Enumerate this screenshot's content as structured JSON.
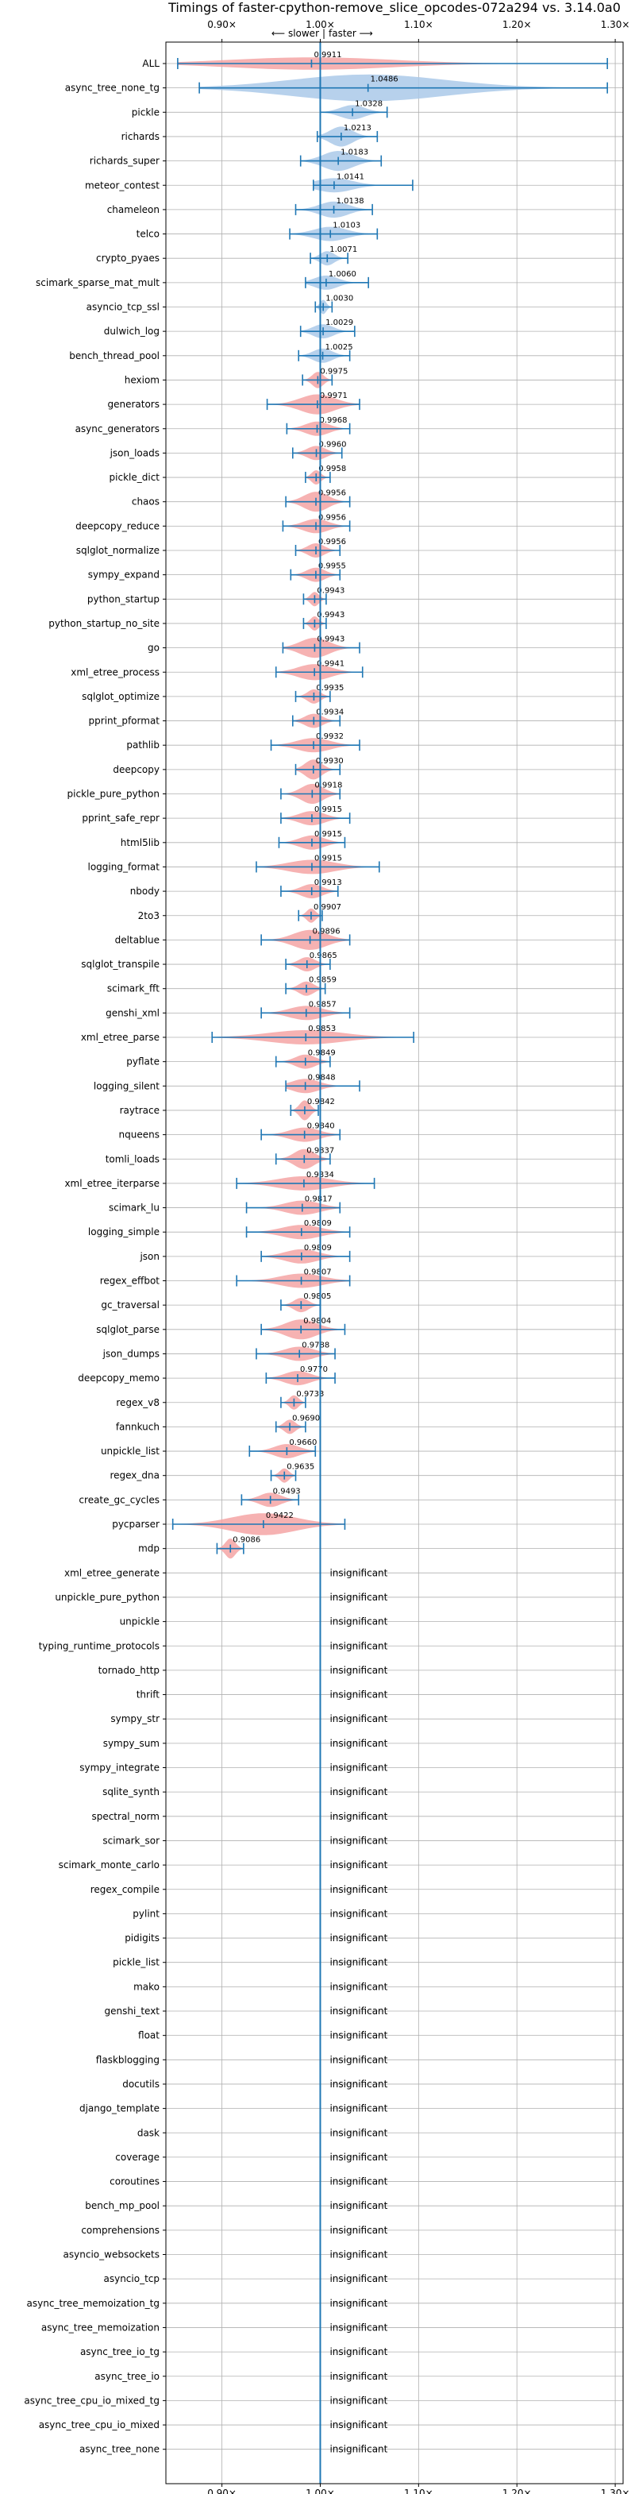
{
  "chart_data": {
    "type": "violin",
    "title": "Timings of faster-cpython-remove_slice_opcodes-072a294 vs. 3.14.0a0",
    "xlabel": "",
    "ylabel": "",
    "direction_hint": {
      "slower": "⟵ slower",
      "separator": "|",
      "faster": "faster ⟶"
    },
    "xlim": [
      0.843,
      1.308
    ],
    "xticks": [
      0.9,
      1.0,
      1.1,
      1.2,
      1.3
    ],
    "xtick_labels": [
      "0.90×",
      "1.00×",
      "1.10×",
      "1.20×",
      "1.30×"
    ],
    "grid": true,
    "reference_line": 1.0,
    "colors": {
      "faster": "#aac9e9",
      "slower": "#f4a4a4",
      "line": "#1f77b4",
      "grid": "#b0b0b0"
    },
    "insignificant_label": "insignificant",
    "benchmarks": [
      {
        "name": "ALL",
        "value": 0.9911,
        "label": "0.9911",
        "lo": 0.855,
        "hi": 1.292,
        "width": 0.4,
        "significant": true
      },
      {
        "name": "async_tree_none_tg",
        "value": 1.0486,
        "label": "1.0486",
        "lo": 0.877,
        "hi": 1.292,
        "width": 1.2,
        "significant": true
      },
      {
        "name": "pickle",
        "value": 1.0328,
        "label": "1.0328",
        "lo": 1.0,
        "hi": 1.068,
        "width": 0.5,
        "significant": true
      },
      {
        "name": "richards",
        "value": 1.0213,
        "label": "1.0213",
        "lo": 0.997,
        "hi": 1.058,
        "width": 0.8,
        "significant": true
      },
      {
        "name": "richards_super",
        "value": 1.0183,
        "label": "1.0183",
        "lo": 0.98,
        "hi": 1.062,
        "width": 0.8,
        "significant": true
      },
      {
        "name": "meteor_contest",
        "value": 1.0141,
        "label": "1.0141",
        "lo": 0.993,
        "hi": 1.094,
        "width": 0.5,
        "significant": true
      },
      {
        "name": "chameleon",
        "value": 1.0138,
        "label": "1.0138",
        "lo": 0.975,
        "hi": 1.053,
        "width": 0.6,
        "significant": true
      },
      {
        "name": "telco",
        "value": 1.0103,
        "label": "1.0103",
        "lo": 0.969,
        "hi": 1.058,
        "width": 0.5,
        "significant": true
      },
      {
        "name": "crypto_pyaes",
        "value": 1.0071,
        "label": "1.0071",
        "lo": 0.99,
        "hi": 1.028,
        "width": 0.5,
        "significant": true
      },
      {
        "name": "scimark_sparse_mat_mult",
        "value": 1.006,
        "label": "1.0060",
        "lo": 0.985,
        "hi": 1.049,
        "width": 0.5,
        "significant": true
      },
      {
        "name": "asyncio_tcp_ssl",
        "value": 1.003,
        "label": "1.0030",
        "lo": 0.995,
        "hi": 1.012,
        "width": 0.5,
        "significant": true
      },
      {
        "name": "dulwich_log",
        "value": 1.0029,
        "label": "1.0029",
        "lo": 0.98,
        "hi": 1.035,
        "width": 0.5,
        "significant": true
      },
      {
        "name": "bench_thread_pool",
        "value": 1.0025,
        "label": "1.0025",
        "lo": 0.978,
        "hi": 1.03,
        "width": 0.5,
        "significant": true
      },
      {
        "name": "hexiom",
        "value": 0.9975,
        "label": "0.9975",
        "lo": 0.982,
        "hi": 1.012,
        "width": 0.6,
        "significant": true
      },
      {
        "name": "generators",
        "value": 0.9971,
        "label": "0.9971",
        "lo": 0.946,
        "hi": 1.04,
        "width": 0.8,
        "significant": true
      },
      {
        "name": "async_generators",
        "value": 0.9968,
        "label": "0.9968",
        "lo": 0.966,
        "hi": 1.03,
        "width": 0.5,
        "significant": true
      },
      {
        "name": "json_loads",
        "value": 0.996,
        "label": "0.9960",
        "lo": 0.972,
        "hi": 1.022,
        "width": 0.5,
        "significant": true
      },
      {
        "name": "pickle_dict",
        "value": 0.9958,
        "label": "0.9958",
        "lo": 0.985,
        "hi": 1.01,
        "width": 0.5,
        "significant": true
      },
      {
        "name": "chaos",
        "value": 0.9956,
        "label": "0.9956",
        "lo": 0.965,
        "hi": 1.03,
        "width": 0.8,
        "significant": true
      },
      {
        "name": "deepcopy_reduce",
        "value": 0.9956,
        "label": "0.9956",
        "lo": 0.962,
        "hi": 1.03,
        "width": 0.5,
        "significant": true
      },
      {
        "name": "sqlglot_normalize",
        "value": 0.9956,
        "label": "0.9956",
        "lo": 0.975,
        "hi": 1.02,
        "width": 0.5,
        "significant": true
      },
      {
        "name": "sympy_expand",
        "value": 0.9955,
        "label": "0.9955",
        "lo": 0.97,
        "hi": 1.02,
        "width": 0.5,
        "significant": true
      },
      {
        "name": "python_startup",
        "value": 0.9943,
        "label": "0.9943",
        "lo": 0.983,
        "hi": 1.006,
        "width": 0.5,
        "significant": true
      },
      {
        "name": "python_startup_no_site",
        "value": 0.9943,
        "label": "0.9943",
        "lo": 0.983,
        "hi": 1.006,
        "width": 0.5,
        "significant": true
      },
      {
        "name": "go",
        "value": 0.9943,
        "label": "0.9943",
        "lo": 0.962,
        "hi": 1.04,
        "width": 0.8,
        "significant": true
      },
      {
        "name": "xml_etree_process",
        "value": 0.9941,
        "label": "0.9941",
        "lo": 0.955,
        "hi": 1.043,
        "width": 0.6,
        "significant": true
      },
      {
        "name": "sqlglot_optimize",
        "value": 0.9935,
        "label": "0.9935",
        "lo": 0.975,
        "hi": 1.01,
        "width": 0.5,
        "significant": true
      },
      {
        "name": "pprint_pformat",
        "value": 0.9934,
        "label": "0.9934",
        "lo": 0.972,
        "hi": 1.02,
        "width": 0.5,
        "significant": true
      },
      {
        "name": "pathlib",
        "value": 0.9932,
        "label": "0.9932",
        "lo": 0.95,
        "hi": 1.04,
        "width": 0.5,
        "significant": true
      },
      {
        "name": "deepcopy",
        "value": 0.993,
        "label": "0.9930",
        "lo": 0.975,
        "hi": 1.02,
        "width": 0.8,
        "significant": true
      },
      {
        "name": "pickle_pure_python",
        "value": 0.9918,
        "label": "0.9918",
        "lo": 0.96,
        "hi": 1.02,
        "width": 0.8,
        "significant": true
      },
      {
        "name": "pprint_safe_repr",
        "value": 0.9915,
        "label": "0.9915",
        "lo": 0.96,
        "hi": 1.03,
        "width": 0.5,
        "significant": true
      },
      {
        "name": "html5lib",
        "value": 0.9915,
        "label": "0.9915",
        "lo": 0.958,
        "hi": 1.025,
        "width": 0.5,
        "significant": true
      },
      {
        "name": "logging_format",
        "value": 0.9915,
        "label": "0.9915",
        "lo": 0.935,
        "hi": 1.06,
        "width": 0.5,
        "significant": true
      },
      {
        "name": "nbody",
        "value": 0.9913,
        "label": "0.9913",
        "lo": 0.96,
        "hi": 1.018,
        "width": 0.5,
        "significant": true
      },
      {
        "name": "2to3",
        "value": 0.9907,
        "label": "0.9907",
        "lo": 0.978,
        "hi": 1.002,
        "width": 0.5,
        "significant": true
      },
      {
        "name": "deltablue",
        "value": 0.9896,
        "label": "0.9896",
        "lo": 0.94,
        "hi": 1.03,
        "width": 0.8,
        "significant": true
      },
      {
        "name": "sqlglot_transpile",
        "value": 0.9865,
        "label": "0.9865",
        "lo": 0.965,
        "hi": 1.01,
        "width": 0.5,
        "significant": true
      },
      {
        "name": "scimark_fft",
        "value": 0.9859,
        "label": "0.9859",
        "lo": 0.965,
        "hi": 1.005,
        "width": 0.5,
        "significant": true
      },
      {
        "name": "genshi_xml",
        "value": 0.9857,
        "label": "0.9857",
        "lo": 0.94,
        "hi": 1.03,
        "width": 0.5,
        "significant": true
      },
      {
        "name": "xml_etree_parse",
        "value": 0.9853,
        "label": "0.9853",
        "lo": 0.89,
        "hi": 1.095,
        "width": 0.5,
        "significant": true
      },
      {
        "name": "pyflate",
        "value": 0.9849,
        "label": "0.9849",
        "lo": 0.955,
        "hi": 1.01,
        "width": 0.5,
        "significant": true
      },
      {
        "name": "logging_silent",
        "value": 0.9848,
        "label": "0.9848",
        "lo": 0.965,
        "hi": 1.04,
        "width": 0.5,
        "significant": true
      },
      {
        "name": "raytrace",
        "value": 0.9842,
        "label": "0.9842",
        "lo": 0.97,
        "hi": 0.998,
        "width": 0.8,
        "significant": true
      },
      {
        "name": "nqueens",
        "value": 0.984,
        "label": "0.9840",
        "lo": 0.94,
        "hi": 1.02,
        "width": 0.5,
        "significant": true
      },
      {
        "name": "tomli_loads",
        "value": 0.9837,
        "label": "0.9837",
        "lo": 0.955,
        "hi": 1.01,
        "width": 0.8,
        "significant": true
      },
      {
        "name": "xml_etree_iterparse",
        "value": 0.9834,
        "label": "0.9834",
        "lo": 0.915,
        "hi": 1.055,
        "width": 0.5,
        "significant": true
      },
      {
        "name": "scimark_lu",
        "value": 0.9817,
        "label": "0.9817",
        "lo": 0.925,
        "hi": 1.02,
        "width": 0.5,
        "significant": true
      },
      {
        "name": "logging_simple",
        "value": 0.9809,
        "label": "0.9809",
        "lo": 0.925,
        "hi": 1.03,
        "width": 0.5,
        "significant": true
      },
      {
        "name": "json",
        "value": 0.9809,
        "label": "0.9809",
        "lo": 0.94,
        "hi": 1.03,
        "width": 0.5,
        "significant": true
      },
      {
        "name": "regex_effbot",
        "value": 0.9807,
        "label": "0.9807",
        "lo": 0.915,
        "hi": 1.03,
        "width": 0.5,
        "significant": true
      },
      {
        "name": "gc_traversal",
        "value": 0.9805,
        "label": "0.9805",
        "lo": 0.96,
        "hi": 1.0,
        "width": 0.5,
        "significant": true
      },
      {
        "name": "sqlglot_parse",
        "value": 0.9804,
        "label": "0.9804",
        "lo": 0.94,
        "hi": 1.025,
        "width": 0.8,
        "significant": true
      },
      {
        "name": "json_dumps",
        "value": 0.9788,
        "label": "0.9788",
        "lo": 0.935,
        "hi": 1.015,
        "width": 0.5,
        "significant": true
      },
      {
        "name": "deepcopy_memo",
        "value": 0.977,
        "label": "0.9770",
        "lo": 0.945,
        "hi": 1.015,
        "width": 0.5,
        "significant": true
      },
      {
        "name": "regex_v8",
        "value": 0.9733,
        "label": "0.9733",
        "lo": 0.96,
        "hi": 0.985,
        "width": 0.5,
        "significant": true
      },
      {
        "name": "fannkuch",
        "value": 0.969,
        "label": "0.9690",
        "lo": 0.955,
        "hi": 0.985,
        "width": 0.5,
        "significant": true
      },
      {
        "name": "unpickle_list",
        "value": 0.966,
        "label": "0.9660",
        "lo": 0.928,
        "hi": 0.995,
        "width": 0.5,
        "significant": true
      },
      {
        "name": "regex_dna",
        "value": 0.9635,
        "label": "0.9635",
        "lo": 0.95,
        "hi": 0.975,
        "width": 0.5,
        "significant": true
      },
      {
        "name": "create_gc_cycles",
        "value": 0.9493,
        "label": "0.9493",
        "lo": 0.92,
        "hi": 0.978,
        "width": 0.5,
        "significant": true
      },
      {
        "name": "pycparser",
        "value": 0.9422,
        "label": "0.9422",
        "lo": 0.85,
        "hi": 1.025,
        "width": 0.9,
        "significant": true
      },
      {
        "name": "mdp",
        "value": 0.9086,
        "label": "0.9086",
        "lo": 0.895,
        "hi": 0.922,
        "width": 0.8,
        "significant": true
      },
      {
        "name": "xml_etree_generate",
        "significant": false
      },
      {
        "name": "unpickle_pure_python",
        "significant": false
      },
      {
        "name": "unpickle",
        "significant": false
      },
      {
        "name": "typing_runtime_protocols",
        "significant": false
      },
      {
        "name": "tornado_http",
        "significant": false
      },
      {
        "name": "thrift",
        "significant": false
      },
      {
        "name": "sympy_str",
        "significant": false
      },
      {
        "name": "sympy_sum",
        "significant": false
      },
      {
        "name": "sympy_integrate",
        "significant": false
      },
      {
        "name": "sqlite_synth",
        "significant": false
      },
      {
        "name": "spectral_norm",
        "significant": false
      },
      {
        "name": "scimark_sor",
        "significant": false
      },
      {
        "name": "scimark_monte_carlo",
        "significant": false
      },
      {
        "name": "regex_compile",
        "significant": false
      },
      {
        "name": "pylint",
        "significant": false
      },
      {
        "name": "pidigits",
        "significant": false
      },
      {
        "name": "pickle_list",
        "significant": false
      },
      {
        "name": "mako",
        "significant": false
      },
      {
        "name": "genshi_text",
        "significant": false
      },
      {
        "name": "float",
        "significant": false
      },
      {
        "name": "flaskblogging",
        "significant": false
      },
      {
        "name": "docutils",
        "significant": false
      },
      {
        "name": "django_template",
        "significant": false
      },
      {
        "name": "dask",
        "significant": false
      },
      {
        "name": "coverage",
        "significant": false
      },
      {
        "name": "coroutines",
        "significant": false
      },
      {
        "name": "bench_mp_pool",
        "significant": false
      },
      {
        "name": "comprehensions",
        "significant": false
      },
      {
        "name": "asyncio_websockets",
        "significant": false
      },
      {
        "name": "asyncio_tcp",
        "significant": false
      },
      {
        "name": "async_tree_memoization_tg",
        "significant": false
      },
      {
        "name": "async_tree_memoization",
        "significant": false
      },
      {
        "name": "async_tree_io_tg",
        "significant": false
      },
      {
        "name": "async_tree_io",
        "significant": false
      },
      {
        "name": "async_tree_cpu_io_mixed_tg",
        "significant": false
      },
      {
        "name": "async_tree_cpu_io_mixed",
        "significant": false
      },
      {
        "name": "async_tree_none",
        "significant": false
      }
    ]
  }
}
